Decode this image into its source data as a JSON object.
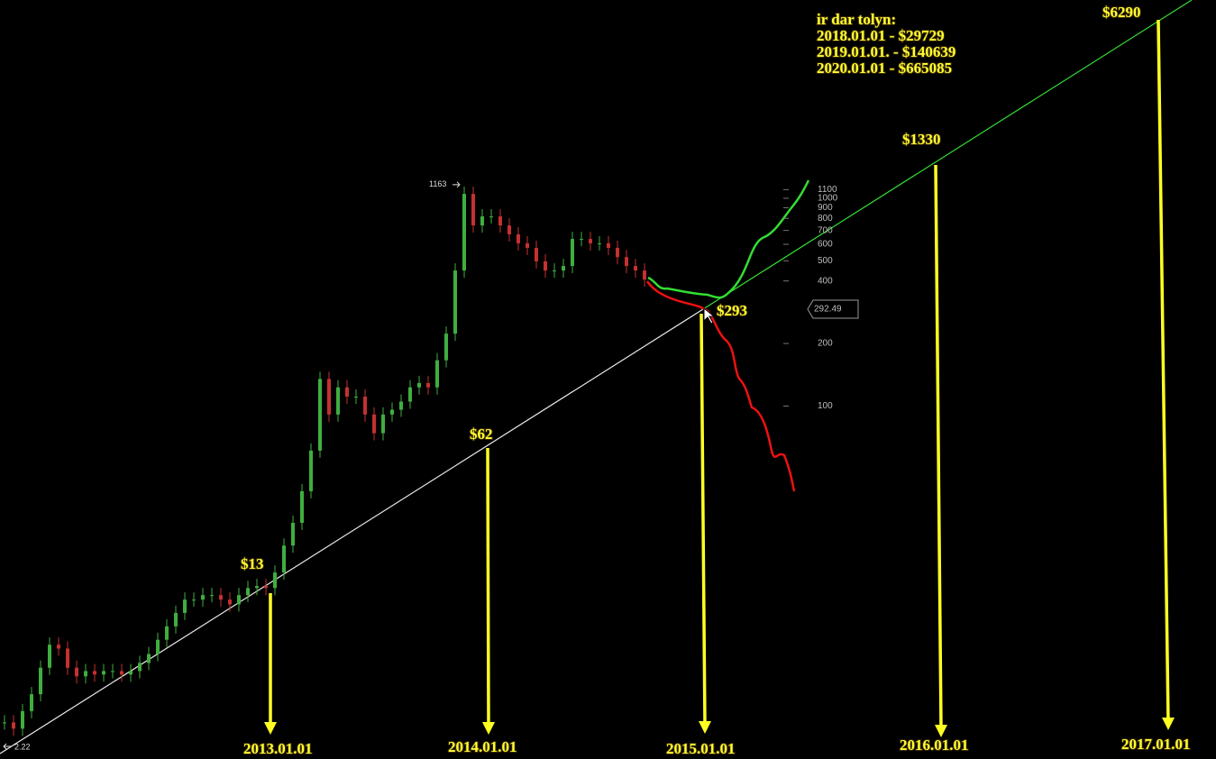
{
  "chart_data": {
    "type": "candle",
    "log_scale": true,
    "ylim": [
      2,
      9000
    ],
    "yticks": [
      100,
      200,
      400,
      500,
      600,
      700,
      800,
      900,
      1000,
      1100
    ],
    "up_color": "#3fae3f",
    "down_color": "#c63030",
    "categories": [
      null,
      null,
      null,
      null,
      null,
      null,
      null,
      null,
      null,
      null,
      null,
      null,
      null,
      null,
      null,
      null,
      null,
      null,
      null,
      null,
      null,
      null,
      null,
      null,
      null,
      null,
      null,
      null,
      null,
      null,
      null,
      null,
      null,
      null,
      null,
      null,
      null,
      null,
      null,
      null,
      null,
      null,
      null,
      null,
      null,
      null,
      null,
      null,
      null,
      null,
      null,
      null,
      null,
      null,
      null,
      null,
      null,
      null,
      null,
      null,
      null,
      null,
      null,
      null,
      null,
      null,
      null,
      null,
      null,
      null,
      null,
      null
    ],
    "values": [
      3.0,
      2.8,
      3.4,
      4.1,
      5.5,
      7.1,
      6.8,
      5.5,
      5.0,
      5.3,
      5.1,
      5.3,
      5.3,
      5.1,
      5.3,
      5.8,
      6.4,
      7.5,
      8.7,
      10.1,
      11.7,
      11.7,
      12.3,
      12.3,
      11.7,
      11.1,
      12.3,
      13.3,
      13.6,
      13.3,
      15.8,
      21.3,
      27.4,
      38.9,
      61,
      135,
      91,
      123,
      111,
      111,
      91,
      74,
      91,
      96,
      105,
      123,
      129,
      123,
      166,
      223,
      449,
      1050,
      740,
      818,
      818,
      740,
      670,
      607,
      577,
      497,
      449,
      449,
      472,
      637,
      637,
      607,
      607,
      577,
      521,
      472,
      449,
      406
    ],
    "high_marker": 1163,
    "last_price": 292.49,
    "low_marker": 2.22,
    "annotations": [
      {
        "price": "$13",
        "date": "2013.01.01"
      },
      {
        "price": "$62",
        "date": "2014.01.01"
      },
      {
        "price": "$293",
        "date": "2015.01.01"
      },
      {
        "price": "$1330",
        "date": "2016.01.01"
      },
      {
        "price": "$6290",
        "date": "2017.01.01"
      }
    ],
    "forecast": {
      "title": "ir dar tolyn:",
      "lines": [
        "2018.01.01 - $29729",
        "2019.01.01. - $140639",
        "2020.01.01 - $665085"
      ]
    }
  }
}
